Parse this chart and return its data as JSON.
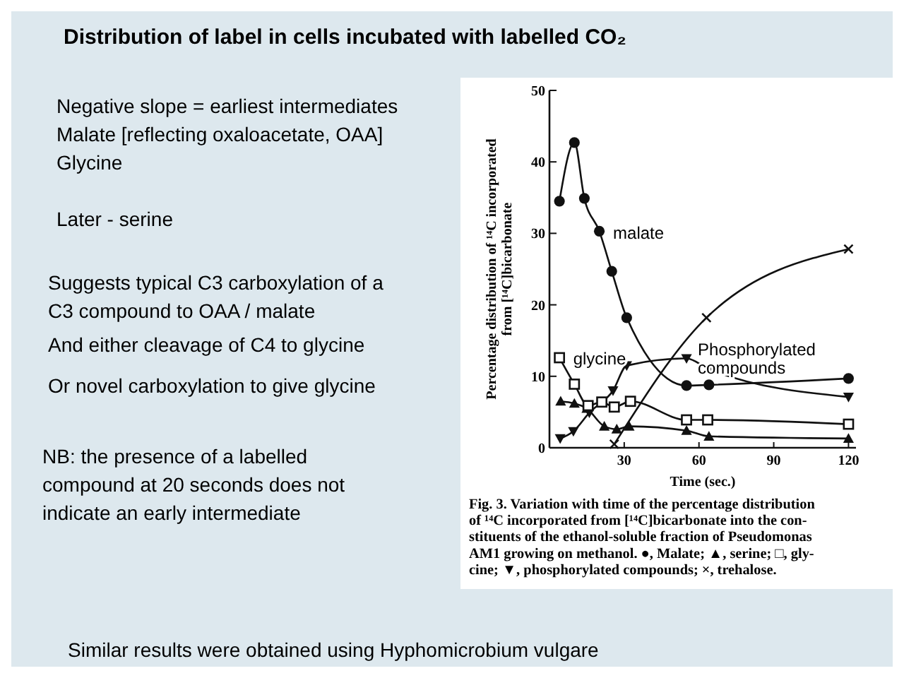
{
  "chart_data": {
    "type": "line",
    "title": "Distribution of label in cells incubated with  labelled CO₂",
    "xlabel": "Time (sec.)",
    "ylabel": "Percentage distribution of ¹⁴C incorporated\nfrom [¹⁴C]bicarbonate",
    "xlim": [
      0,
      123
    ],
    "ylim": [
      0,
      50
    ],
    "xticks": [
      30,
      60,
      90,
      120
    ],
    "yticks": [
      0,
      10,
      20,
      30,
      40,
      50
    ],
    "grid": false,
    "line_style": "solid",
    "series": [
      {
        "color": "#111111",
        "marker": "circle",
        "x": [
          4,
          10,
          14,
          20,
          25,
          31,
          55,
          64,
          120
        ],
        "values": [
          34.5,
          42.7,
          34.9,
          30.3,
          24.7,
          18.2,
          8.7,
          8.8,
          9.7
        ]
      },
      {
        "color": "#111111",
        "marker": "square",
        "x": [
          4,
          10,
          15.5,
          21,
          26,
          32.5,
          55,
          63.5,
          120
        ],
        "values": [
          12.6,
          8.9,
          5.9,
          6.4,
          5.7,
          6.5,
          3.9,
          3.9,
          3.3
        ]
      },
      {
        "color": "#111111",
        "marker": "triangle",
        "x": [
          4.5,
          10,
          15,
          22,
          27,
          32,
          55,
          64,
          120
        ],
        "values": [
          6.5,
          6.2,
          5.5,
          3.0,
          2.6,
          3.0,
          2.4,
          1.6,
          1.3
        ]
      },
      {
        "color": "#111111",
        "marker": "triangle-down",
        "x": [
          4.3,
          9.6,
          16,
          25.5,
          31,
          55,
          64,
          120
        ],
        "values": [
          1.3,
          2.3,
          4.9,
          8.0,
          11.5,
          12.5,
          11.0,
          7.1
        ]
      },
      {
        "color": "#111111",
        "marker": "cross",
        "x": [
          26,
          63,
          120
        ],
        "values": [
          0.5,
          18.2,
          27.8
        ]
      }
    ],
    "annotations": [
      {
        "text": "malate",
        "x": 21,
        "y": 30
      },
      {
        "text": "glycine",
        "x": 5,
        "y": 12.5
      },
      {
        "text": "Phosphorylated\ncompounds",
        "x": 55,
        "y": 12.5
      },
      "Negative slope = earliest intermediates\nMalate [reflecting oxaloacetate, OAA]\nGlycine",
      "Later - serine",
      "Suggests typical C3 carboxylation of a\nC3 compound to OAA / malate",
      "And either cleavage of C4 to glycine",
      "Or novel carboxylation to give glycine",
      "NB: the presence of a labelled\ncompound at 20 seconds does not\nindicate an early intermediate",
      "Fig. 3.  Variation with time of the percentage distribution\nof ¹⁴C incorporated from [¹⁴C]bicarbonate into the con-\nstituents of the ethanol-soluble fraction of Pseudomonas\nAM1 growing on methanol.  ●, Malate; ▲, serine; □, gly-\ncine; ▼, phosphorylated compounds; ×, trehalose.",
      "Similar results were obtained using Hyphomicrobium vulgare"
    ]
  }
}
